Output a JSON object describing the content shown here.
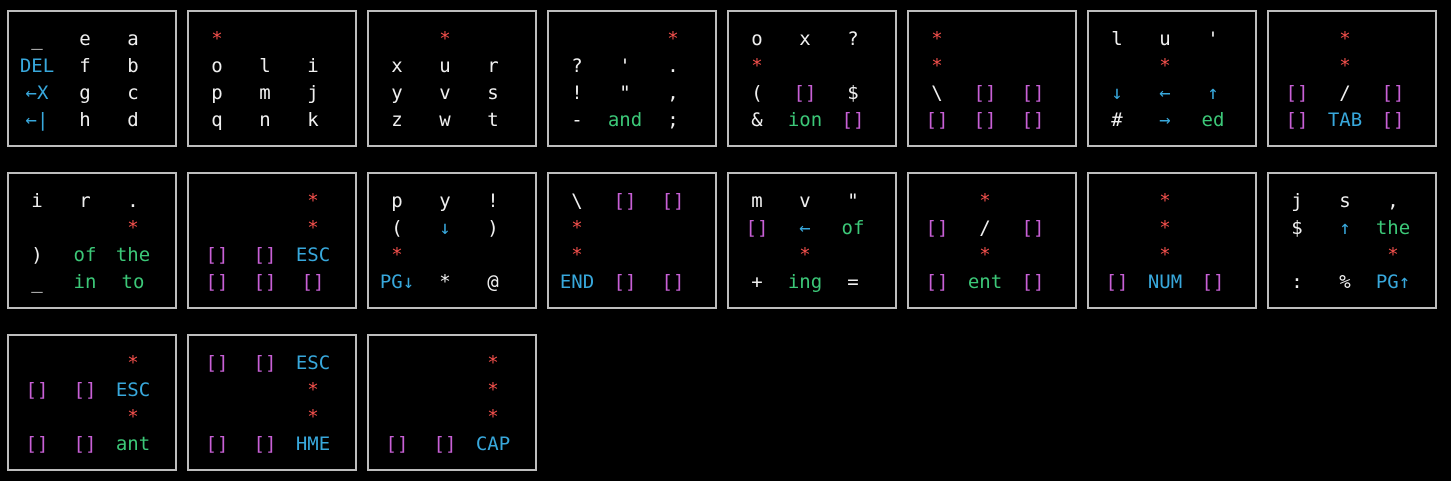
{
  "colors": {
    "background": "#000000",
    "border": "#bdbdbd",
    "white": "#f0f0f0",
    "red": "#f4504c",
    "magenta": "#c860d6",
    "blue": "#38a8dc",
    "green": "#3cc878"
  },
  "panels": [
    {
      "rows": [
        [
          {
            "t": "_",
            "c": "w"
          },
          {
            "t": "e",
            "c": "w"
          },
          {
            "t": "a",
            "c": "w"
          }
        ],
        [
          {
            "t": "DEL",
            "c": "b"
          },
          {
            "t": "f",
            "c": "w"
          },
          {
            "t": "b",
            "c": "w"
          }
        ],
        [
          {
            "t": "←X",
            "c": "b"
          },
          {
            "t": "g",
            "c": "w"
          },
          {
            "t": "c",
            "c": "w"
          }
        ],
        [
          {
            "t": "←|",
            "c": "b"
          },
          {
            "t": "h",
            "c": "w"
          },
          {
            "t": "d",
            "c": "w"
          }
        ]
      ]
    },
    {
      "rows": [
        [
          {
            "t": "*",
            "c": "r"
          },
          {
            "t": "",
            "c": "w"
          },
          {
            "t": "",
            "c": "w"
          }
        ],
        [
          {
            "t": "o",
            "c": "w"
          },
          {
            "t": "l",
            "c": "w"
          },
          {
            "t": "i",
            "c": "w"
          }
        ],
        [
          {
            "t": "p",
            "c": "w"
          },
          {
            "t": "m",
            "c": "w"
          },
          {
            "t": "j",
            "c": "w"
          }
        ],
        [
          {
            "t": "q",
            "c": "w"
          },
          {
            "t": "n",
            "c": "w"
          },
          {
            "t": "k",
            "c": "w"
          }
        ]
      ]
    },
    {
      "rows": [
        [
          {
            "t": "",
            "c": "w"
          },
          {
            "t": "*",
            "c": "r"
          },
          {
            "t": "",
            "c": "w"
          }
        ],
        [
          {
            "t": "x",
            "c": "w"
          },
          {
            "t": "u",
            "c": "w"
          },
          {
            "t": "r",
            "c": "w"
          }
        ],
        [
          {
            "t": "y",
            "c": "w"
          },
          {
            "t": "v",
            "c": "w"
          },
          {
            "t": "s",
            "c": "w"
          }
        ],
        [
          {
            "t": "z",
            "c": "w"
          },
          {
            "t": "w",
            "c": "w"
          },
          {
            "t": "t",
            "c": "w"
          }
        ]
      ]
    },
    {
      "rows": [
        [
          {
            "t": "",
            "c": "w"
          },
          {
            "t": "",
            "c": "w"
          },
          {
            "t": "*",
            "c": "r"
          }
        ],
        [
          {
            "t": "?",
            "c": "w"
          },
          {
            "t": "'",
            "c": "w"
          },
          {
            "t": ".",
            "c": "w"
          }
        ],
        [
          {
            "t": "!",
            "c": "w"
          },
          {
            "t": "\"",
            "c": "w"
          },
          {
            "t": ",",
            "c": "w"
          }
        ],
        [
          {
            "t": "-",
            "c": "w"
          },
          {
            "t": "and",
            "c": "g"
          },
          {
            "t": ";",
            "c": "w"
          }
        ]
      ]
    },
    {
      "rows": [
        [
          {
            "t": "o",
            "c": "w"
          },
          {
            "t": "x",
            "c": "w"
          },
          {
            "t": "?",
            "c": "w"
          }
        ],
        [
          {
            "t": "*",
            "c": "r"
          },
          {
            "t": "",
            "c": "w"
          },
          {
            "t": "",
            "c": "w"
          }
        ],
        [
          {
            "t": "(",
            "c": "w"
          },
          {
            "t": "[]",
            "c": "m"
          },
          {
            "t": "$",
            "c": "w"
          }
        ],
        [
          {
            "t": "&",
            "c": "w"
          },
          {
            "t": "ion",
            "c": "g"
          },
          {
            "t": "[]",
            "c": "m"
          }
        ]
      ]
    },
    {
      "rows": [
        [
          {
            "t": "*",
            "c": "r"
          },
          {
            "t": "",
            "c": "w"
          },
          {
            "t": "",
            "c": "w"
          }
        ],
        [
          {
            "t": "*",
            "c": "r"
          },
          {
            "t": "",
            "c": "w"
          },
          {
            "t": "",
            "c": "w"
          }
        ],
        [
          {
            "t": "\\",
            "c": "w"
          },
          {
            "t": "[]",
            "c": "m"
          },
          {
            "t": "[]",
            "c": "m"
          }
        ],
        [
          {
            "t": "[]",
            "c": "m"
          },
          {
            "t": "[]",
            "c": "m"
          },
          {
            "t": "[]",
            "c": "m"
          }
        ]
      ]
    },
    {
      "rows": [
        [
          {
            "t": "l",
            "c": "w"
          },
          {
            "t": "u",
            "c": "w"
          },
          {
            "t": "'",
            "c": "w"
          }
        ],
        [
          {
            "t": "",
            "c": "w"
          },
          {
            "t": "*",
            "c": "r"
          },
          {
            "t": "",
            "c": "w"
          }
        ],
        [
          {
            "t": "↓",
            "c": "b"
          },
          {
            "t": "←",
            "c": "b"
          },
          {
            "t": "↑",
            "c": "b"
          }
        ],
        [
          {
            "t": "#",
            "c": "w"
          },
          {
            "t": "→",
            "c": "b"
          },
          {
            "t": "ed",
            "c": "g"
          }
        ]
      ]
    },
    {
      "rows": [
        [
          {
            "t": "",
            "c": "w"
          },
          {
            "t": "*",
            "c": "r"
          },
          {
            "t": "",
            "c": "w"
          }
        ],
        [
          {
            "t": "",
            "c": "w"
          },
          {
            "t": "*",
            "c": "r"
          },
          {
            "t": "",
            "c": "w"
          }
        ],
        [
          {
            "t": "[]",
            "c": "m"
          },
          {
            "t": "/",
            "c": "w"
          },
          {
            "t": "[]",
            "c": "m"
          }
        ],
        [
          {
            "t": "[]",
            "c": "m"
          },
          {
            "t": "TAB",
            "c": "b"
          },
          {
            "t": "[]",
            "c": "m"
          }
        ]
      ]
    },
    {
      "rows": [
        [
          {
            "t": "i",
            "c": "w"
          },
          {
            "t": "r",
            "c": "w"
          },
          {
            "t": ".",
            "c": "w"
          }
        ],
        [
          {
            "t": "",
            "c": "w"
          },
          {
            "t": "",
            "c": "w"
          },
          {
            "t": "*",
            "c": "r"
          }
        ],
        [
          {
            "t": ")",
            "c": "w"
          },
          {
            "t": "of",
            "c": "g"
          },
          {
            "t": "the",
            "c": "g"
          }
        ],
        [
          {
            "t": "_",
            "c": "w"
          },
          {
            "t": "in",
            "c": "g"
          },
          {
            "t": "to",
            "c": "g"
          }
        ]
      ]
    },
    {
      "rows": [
        [
          {
            "t": "",
            "c": "w"
          },
          {
            "t": "",
            "c": "w"
          },
          {
            "t": "*",
            "c": "r"
          }
        ],
        [
          {
            "t": "",
            "c": "w"
          },
          {
            "t": "",
            "c": "w"
          },
          {
            "t": "*",
            "c": "r"
          }
        ],
        [
          {
            "t": "[]",
            "c": "m"
          },
          {
            "t": "[]",
            "c": "m"
          },
          {
            "t": "ESC",
            "c": "b"
          }
        ],
        [
          {
            "t": "[]",
            "c": "m"
          },
          {
            "t": "[]",
            "c": "m"
          },
          {
            "t": "[]",
            "c": "m"
          }
        ]
      ]
    },
    {
      "rows": [
        [
          {
            "t": "p",
            "c": "w"
          },
          {
            "t": "y",
            "c": "w"
          },
          {
            "t": "!",
            "c": "w"
          }
        ],
        [
          {
            "t": "(",
            "c": "w"
          },
          {
            "t": "↓",
            "c": "b"
          },
          {
            "t": ")",
            "c": "w"
          }
        ],
        [
          {
            "t": "*",
            "c": "r"
          },
          {
            "t": "",
            "c": "w"
          },
          {
            "t": "",
            "c": "w"
          }
        ],
        [
          {
            "t": "PG↓",
            "c": "b"
          },
          {
            "t": "*",
            "c": "w"
          },
          {
            "t": "@",
            "c": "w"
          }
        ]
      ]
    },
    {
      "rows": [
        [
          {
            "t": "\\",
            "c": "w"
          },
          {
            "t": "[]",
            "c": "m"
          },
          {
            "t": "[]",
            "c": "m"
          }
        ],
        [
          {
            "t": "*",
            "c": "r"
          },
          {
            "t": "",
            "c": "w"
          },
          {
            "t": "",
            "c": "w"
          }
        ],
        [
          {
            "t": "*",
            "c": "r"
          },
          {
            "t": "",
            "c": "w"
          },
          {
            "t": "",
            "c": "w"
          }
        ],
        [
          {
            "t": "END",
            "c": "b"
          },
          {
            "t": "[]",
            "c": "m"
          },
          {
            "t": "[]",
            "c": "m"
          }
        ]
      ]
    },
    {
      "rows": [
        [
          {
            "t": "m",
            "c": "w"
          },
          {
            "t": "v",
            "c": "w"
          },
          {
            "t": "\"",
            "c": "w"
          }
        ],
        [
          {
            "t": "[]",
            "c": "m"
          },
          {
            "t": "←",
            "c": "b"
          },
          {
            "t": "of",
            "c": "g"
          }
        ],
        [
          {
            "t": "",
            "c": "w"
          },
          {
            "t": "*",
            "c": "r"
          },
          {
            "t": "",
            "c": "w"
          }
        ],
        [
          {
            "t": "+",
            "c": "w"
          },
          {
            "t": "ing",
            "c": "g"
          },
          {
            "t": "=",
            "c": "w"
          }
        ]
      ]
    },
    {
      "rows": [
        [
          {
            "t": "",
            "c": "w"
          },
          {
            "t": "*",
            "c": "r"
          },
          {
            "t": "",
            "c": "w"
          }
        ],
        [
          {
            "t": "[]",
            "c": "m"
          },
          {
            "t": "/",
            "c": "w"
          },
          {
            "t": "[]",
            "c": "m"
          }
        ],
        [
          {
            "t": "",
            "c": "w"
          },
          {
            "t": "*",
            "c": "r"
          },
          {
            "t": "",
            "c": "w"
          }
        ],
        [
          {
            "t": "[]",
            "c": "m"
          },
          {
            "t": "ent",
            "c": "g"
          },
          {
            "t": "[]",
            "c": "m"
          }
        ]
      ]
    },
    {
      "rows": [
        [
          {
            "t": "",
            "c": "w"
          },
          {
            "t": "*",
            "c": "r"
          },
          {
            "t": "",
            "c": "w"
          }
        ],
        [
          {
            "t": "",
            "c": "w"
          },
          {
            "t": "*",
            "c": "r"
          },
          {
            "t": "",
            "c": "w"
          }
        ],
        [
          {
            "t": "",
            "c": "w"
          },
          {
            "t": "*",
            "c": "r"
          },
          {
            "t": "",
            "c": "w"
          }
        ],
        [
          {
            "t": "[]",
            "c": "m"
          },
          {
            "t": "NUM",
            "c": "b"
          },
          {
            "t": "[]",
            "c": "m"
          }
        ]
      ]
    },
    {
      "rows": [
        [
          {
            "t": "j",
            "c": "w"
          },
          {
            "t": "s",
            "c": "w"
          },
          {
            "t": ",",
            "c": "w"
          }
        ],
        [
          {
            "t": "$",
            "c": "w"
          },
          {
            "t": "↑",
            "c": "b"
          },
          {
            "t": "the",
            "c": "g"
          }
        ],
        [
          {
            "t": "",
            "c": "w"
          },
          {
            "t": "",
            "c": "w"
          },
          {
            "t": "*",
            "c": "r"
          }
        ],
        [
          {
            "t": ":",
            "c": "w"
          },
          {
            "t": "%",
            "c": "w"
          },
          {
            "t": "PG↑",
            "c": "b"
          }
        ]
      ]
    },
    {
      "rows": [
        [
          {
            "t": "",
            "c": "w"
          },
          {
            "t": "",
            "c": "w"
          },
          {
            "t": "*",
            "c": "r"
          }
        ],
        [
          {
            "t": "[]",
            "c": "m"
          },
          {
            "t": "[]",
            "c": "m"
          },
          {
            "t": "ESC",
            "c": "b"
          }
        ],
        [
          {
            "t": "",
            "c": "w"
          },
          {
            "t": "",
            "c": "w"
          },
          {
            "t": "*",
            "c": "r"
          }
        ],
        [
          {
            "t": "[]",
            "c": "m"
          },
          {
            "t": "[]",
            "c": "m"
          },
          {
            "t": "ant",
            "c": "g"
          }
        ]
      ]
    },
    {
      "rows": [
        [
          {
            "t": "[]",
            "c": "m"
          },
          {
            "t": "[]",
            "c": "m"
          },
          {
            "t": "ESC",
            "c": "b"
          }
        ],
        [
          {
            "t": "",
            "c": "w"
          },
          {
            "t": "",
            "c": "w"
          },
          {
            "t": "*",
            "c": "r"
          }
        ],
        [
          {
            "t": "",
            "c": "w"
          },
          {
            "t": "",
            "c": "w"
          },
          {
            "t": "*",
            "c": "r"
          }
        ],
        [
          {
            "t": "[]",
            "c": "m"
          },
          {
            "t": "[]",
            "c": "m"
          },
          {
            "t": "HME",
            "c": "b"
          }
        ]
      ]
    },
    {
      "rows": [
        [
          {
            "t": "",
            "c": "w"
          },
          {
            "t": "",
            "c": "w"
          },
          {
            "t": "*",
            "c": "r"
          }
        ],
        [
          {
            "t": "",
            "c": "w"
          },
          {
            "t": "",
            "c": "w"
          },
          {
            "t": "*",
            "c": "r"
          }
        ],
        [
          {
            "t": "",
            "c": "w"
          },
          {
            "t": "",
            "c": "w"
          },
          {
            "t": "*",
            "c": "r"
          }
        ],
        [
          {
            "t": "[]",
            "c": "m"
          },
          {
            "t": "[]",
            "c": "m"
          },
          {
            "t": "CAP",
            "c": "b"
          }
        ]
      ]
    }
  ]
}
